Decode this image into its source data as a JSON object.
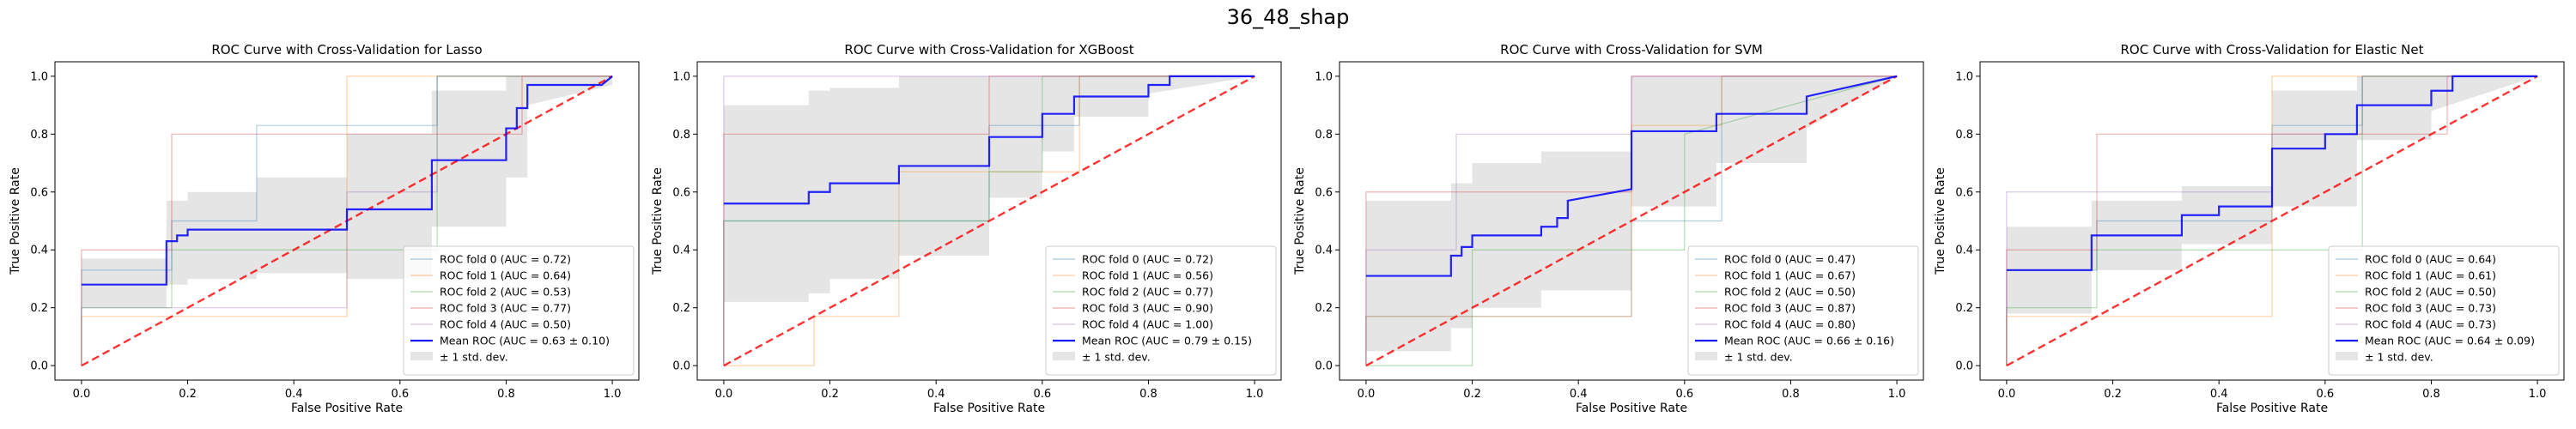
{
  "figure": {
    "title": "36_48_shap"
  },
  "chart_data": [
    {
      "type": "line",
      "title": "ROC Curve with Cross-Validation for Lasso",
      "xlabel": "False Positive Rate",
      "ylabel": "True Positive Rate",
      "xlim": [
        -0.05,
        1.05
      ],
      "ylim": [
        -0.05,
        1.05
      ],
      "xticks": [
        "0.0",
        "0.2",
        "0.4",
        "0.6",
        "0.8",
        "1.0"
      ],
      "yticks": [
        "0.0",
        "0.2",
        "0.4",
        "0.6",
        "0.8",
        "1.0"
      ],
      "legend_position": "lower right",
      "series": [
        {
          "name": "ROC fold 0 (AUC = 0.72)",
          "color": "#1f77b4",
          "x": [
            0,
            0,
            0.17,
            0.17,
            0.33,
            0.33,
            0.67,
            0.67,
            1,
            1
          ],
          "y": [
            0,
            0.33,
            0.33,
            0.5,
            0.5,
            0.83,
            0.83,
            1,
            1,
            1
          ]
        },
        {
          "name": "ROC fold 1 (AUC = 0.64)",
          "color": "#ff7f0e",
          "x": [
            0,
            0,
            0.5,
            0.5,
            0.8,
            0.8,
            1
          ],
          "y": [
            0,
            0.17,
            0.17,
            1,
            1,
            1,
            1
          ]
        },
        {
          "name": "ROC fold 2 (AUC = 0.53)",
          "color": "#2ca02c",
          "x": [
            0,
            0,
            0.17,
            0.17,
            0.67,
            0.67,
            1
          ],
          "y": [
            0,
            0.2,
            0.2,
            0.4,
            0.4,
            1,
            1
          ]
        },
        {
          "name": "ROC fold 3 (AUC = 0.77)",
          "color": "#d62728",
          "x": [
            0,
            0,
            0.17,
            0.17,
            0.83,
            0.83,
            1
          ],
          "y": [
            0,
            0.4,
            0.4,
            0.8,
            0.8,
            1,
            1
          ]
        },
        {
          "name": "ROC fold 4 (AUC = 0.50)",
          "color": "#9467bd",
          "x": [
            0,
            0,
            0.5,
            0.5,
            0.67,
            0.67,
            1
          ],
          "y": [
            0,
            0.2,
            0.2,
            0.6,
            0.6,
            1,
            1
          ]
        }
      ],
      "mean": {
        "name": "Mean ROC (AUC = 0.63 ± 0.10)",
        "color": "#0000ff",
        "x": [
          0,
          0.16,
          0.16,
          0.18,
          0.18,
          0.2,
          0.2,
          0.5,
          0.5,
          0.66,
          0.66,
          0.8,
          0.8,
          0.82,
          0.82,
          0.84,
          0.84,
          0.98,
          1
        ],
        "y": [
          0.28,
          0.28,
          0.43,
          0.43,
          0.45,
          0.45,
          0.47,
          0.47,
          0.54,
          0.54,
          0.71,
          0.71,
          0.82,
          0.82,
          0.89,
          0.89,
          0.97,
          0.97,
          1
        ]
      },
      "std_band": {
        "name": "± 1 std. dev.",
        "x": [
          0,
          0.16,
          0.16,
          0.2,
          0.2,
          0.33,
          0.33,
          0.5,
          0.5,
          0.66,
          0.66,
          0.8,
          0.8,
          0.84,
          0.84,
          1
        ],
        "upper": [
          0.37,
          0.37,
          0.57,
          0.57,
          0.6,
          0.6,
          0.65,
          0.65,
          0.8,
          0.8,
          0.95,
          0.95,
          1,
          1,
          1,
          1
        ],
        "lower": [
          0.2,
          0.2,
          0.28,
          0.28,
          0.3,
          0.3,
          0.32,
          0.32,
          0.3,
          0.3,
          0.48,
          0.48,
          0.65,
          0.65,
          0.9,
          0.97
        ]
      },
      "chance": {
        "color": "#ff0000",
        "x": [
          0,
          1
        ],
        "y": [
          0,
          1
        ]
      },
      "std_label": "± 1 std. dev."
    },
    {
      "type": "line",
      "title": "ROC Curve with Cross-Validation for XGBoost",
      "xlabel": "False Positive Rate",
      "ylabel": "True Positive Rate",
      "xlim": [
        -0.05,
        1.05
      ],
      "ylim": [
        -0.05,
        1.05
      ],
      "xticks": [
        "0.0",
        "0.2",
        "0.4",
        "0.6",
        "0.8",
        "1.0"
      ],
      "yticks": [
        "0.0",
        "0.2",
        "0.4",
        "0.6",
        "0.8",
        "1.0"
      ],
      "legend_position": "lower right",
      "series": [
        {
          "name": "ROC fold 0 (AUC = 0.72)",
          "color": "#1f77b4",
          "x": [
            0,
            0,
            0.5,
            0.5,
            0.67,
            0.67,
            1
          ],
          "y": [
            0,
            0.5,
            0.5,
            0.83,
            0.83,
            1,
            1
          ]
        },
        {
          "name": "ROC fold 1 (AUC = 0.56)",
          "color": "#ff7f0e",
          "x": [
            0,
            0,
            0.17,
            0.17,
            0.33,
            0.33,
            0.67,
            0.67,
            1
          ],
          "y": [
            0,
            0,
            0,
            0.17,
            0.17,
            0.67,
            0.67,
            1,
            1
          ]
        },
        {
          "name": "ROC fold 2 (AUC = 0.77)",
          "color": "#2ca02c",
          "x": [
            0,
            0,
            0.5,
            0.5,
            0.6,
            0.6,
            1
          ],
          "y": [
            0,
            0.5,
            0.5,
            0.67,
            0.67,
            1,
            1
          ]
        },
        {
          "name": "ROC fold 3 (AUC = 0.90)",
          "color": "#d62728",
          "x": [
            0,
            0,
            0.5,
            0.5,
            1
          ],
          "y": [
            0,
            0.8,
            0.8,
            1,
            1
          ]
        },
        {
          "name": "ROC fold 4 (AUC = 1.00)",
          "color": "#9467bd",
          "x": [
            0,
            0,
            1
          ],
          "y": [
            0,
            1,
            1
          ]
        }
      ],
      "mean": {
        "name": "Mean ROC (AUC = 0.79 ± 0.15)",
        "color": "#0000ff",
        "x": [
          0,
          0.16,
          0.16,
          0.2,
          0.2,
          0.33,
          0.33,
          0.5,
          0.5,
          0.6,
          0.6,
          0.66,
          0.66,
          0.8,
          0.8,
          0.84,
          0.84,
          1
        ],
        "y": [
          0.56,
          0.56,
          0.6,
          0.6,
          0.63,
          0.63,
          0.69,
          0.69,
          0.79,
          0.79,
          0.87,
          0.87,
          0.93,
          0.93,
          0.97,
          0.97,
          1,
          1
        ]
      },
      "std_band": {
        "name": "± 1 std. dev.",
        "x": [
          0,
          0.16,
          0.16,
          0.2,
          0.2,
          0.33,
          0.33,
          0.5,
          0.5,
          0.6,
          0.6,
          0.66,
          0.66,
          0.8,
          0.8,
          1
        ],
        "upper": [
          0.9,
          0.9,
          0.95,
          0.95,
          0.96,
          0.96,
          1,
          1,
          1,
          1,
          1,
          1,
          1,
          1,
          1,
          1
        ],
        "lower": [
          0.22,
          0.22,
          0.25,
          0.25,
          0.3,
          0.3,
          0.38,
          0.38,
          0.58,
          0.58,
          0.74,
          0.74,
          0.86,
          0.86,
          0.94,
          1
        ]
      },
      "chance": {
        "color": "#ff0000",
        "x": [
          0,
          1
        ],
        "y": [
          0,
          1
        ]
      },
      "std_label": "± 1 std. dev."
    },
    {
      "type": "line",
      "title": "ROC Curve with Cross-Validation for SVM",
      "xlabel": "False Positive Rate",
      "ylabel": "True Positive Rate",
      "xlim": [
        -0.05,
        1.05
      ],
      "ylim": [
        -0.05,
        1.05
      ],
      "xticks": [
        "0.0",
        "0.2",
        "0.4",
        "0.6",
        "0.8",
        "1.0"
      ],
      "yticks": [
        "0.0",
        "0.2",
        "0.4",
        "0.6",
        "0.8",
        "1.0"
      ],
      "legend_position": "lower right",
      "series": [
        {
          "name": "ROC fold 0 (AUC = 0.47)",
          "color": "#1f77b4",
          "x": [
            0,
            0,
            0.5,
            0.5,
            0.67,
            0.67,
            1
          ],
          "y": [
            0,
            0.17,
            0.17,
            0.5,
            0.5,
            1,
            1
          ]
        },
        {
          "name": "ROC fold 1 (AUC = 0.67)",
          "color": "#ff7f0e",
          "x": [
            0,
            0,
            0.5,
            0.5,
            0.67,
            0.67,
            1
          ],
          "y": [
            0,
            0.17,
            0.17,
            0.83,
            0.83,
            1,
            1
          ]
        },
        {
          "name": "ROC fold 2 (AUC = 0.50)",
          "color": "#2ca02c",
          "x": [
            0,
            0,
            0.2,
            0.2,
            0.6,
            0.6,
            1
          ],
          "y": [
            0,
            0,
            0,
            0.4,
            0.4,
            0.8,
            1
          ]
        },
        {
          "name": "ROC fold 3 (AUC = 0.87)",
          "color": "#d62728",
          "x": [
            0,
            0,
            0.5,
            0.5,
            1
          ],
          "y": [
            0,
            0.6,
            0.6,
            1,
            1
          ]
        },
        {
          "name": "ROC fold 4 (AUC = 0.80)",
          "color": "#9467bd",
          "x": [
            0,
            0,
            0.17,
            0.17,
            0.5,
            0.5,
            1
          ],
          "y": [
            0,
            0.4,
            0.4,
            0.8,
            0.8,
            1,
            1
          ]
        }
      ],
      "mean": {
        "name": "Mean ROC (AUC = 0.66 ± 0.16)",
        "color": "#0000ff",
        "x": [
          0,
          0.16,
          0.16,
          0.18,
          0.18,
          0.2,
          0.2,
          0.33,
          0.33,
          0.36,
          0.36,
          0.38,
          0.38,
          0.5,
          0.5,
          0.66,
          0.66,
          0.83,
          0.83,
          1
        ],
        "y": [
          0.31,
          0.31,
          0.38,
          0.38,
          0.41,
          0.41,
          0.45,
          0.45,
          0.48,
          0.48,
          0.51,
          0.51,
          0.57,
          0.61,
          0.81,
          0.81,
          0.87,
          0.87,
          0.93,
          1
        ]
      },
      "std_band": {
        "name": "± 1 std. dev.",
        "x": [
          0,
          0.16,
          0.16,
          0.2,
          0.2,
          0.33,
          0.33,
          0.5,
          0.5,
          0.66,
          0.66,
          0.83,
          0.83,
          1
        ],
        "upper": [
          0.57,
          0.57,
          0.63,
          0.63,
          0.7,
          0.7,
          0.74,
          0.74,
          1,
          1,
          1,
          1,
          1,
          1
        ],
        "lower": [
          0.05,
          0.05,
          0.13,
          0.13,
          0.2,
          0.2,
          0.26,
          0.26,
          0.55,
          0.55,
          0.7,
          0.7,
          0.82,
          1
        ]
      },
      "chance": {
        "color": "#ff0000",
        "x": [
          0,
          1
        ],
        "y": [
          0,
          1
        ]
      },
      "std_label": "± 1 std. dev."
    },
    {
      "type": "line",
      "title": "ROC Curve with Cross-Validation for Elastic Net",
      "xlabel": "False Positive Rate",
      "ylabel": "True Positive Rate",
      "xlim": [
        -0.05,
        1.05
      ],
      "ylim": [
        -0.05,
        1.05
      ],
      "xticks": [
        "0.0",
        "0.2",
        "0.4",
        "0.6",
        "0.8",
        "1.0"
      ],
      "yticks": [
        "0.0",
        "0.2",
        "0.4",
        "0.6",
        "0.8",
        "1.0"
      ],
      "legend_position": "lower right",
      "series": [
        {
          "name": "ROC fold 0 (AUC = 0.64)",
          "color": "#1f77b4",
          "x": [
            0,
            0,
            0.17,
            0.17,
            0.5,
            0.5,
            0.67,
            0.67,
            1
          ],
          "y": [
            0,
            0.33,
            0.33,
            0.5,
            0.5,
            0.83,
            0.83,
            1,
            1
          ]
        },
        {
          "name": "ROC fold 1 (AUC = 0.61)",
          "color": "#ff7f0e",
          "x": [
            0,
            0,
            0.5,
            0.5,
            0.8,
            0.8,
            1
          ],
          "y": [
            0,
            0.17,
            0.17,
            1,
            1,
            1,
            1
          ]
        },
        {
          "name": "ROC fold 2 (AUC = 0.50)",
          "color": "#2ca02c",
          "x": [
            0,
            0,
            0.17,
            0.17,
            0.67,
            0.67,
            1
          ],
          "y": [
            0,
            0.2,
            0.2,
            0.4,
            0.4,
            1,
            1
          ]
        },
        {
          "name": "ROC fold 3 (AUC = 0.73)",
          "color": "#d62728",
          "x": [
            0,
            0,
            0.17,
            0.17,
            0.83,
            0.83,
            1
          ],
          "y": [
            0,
            0.4,
            0.4,
            0.8,
            0.8,
            1,
            1
          ]
        },
        {
          "name": "ROC fold 4 (AUC = 0.73)",
          "color": "#9467bd",
          "x": [
            0,
            0,
            0.5,
            0.5,
            0.67,
            0.67,
            1
          ],
          "y": [
            0,
            0.6,
            0.6,
            0.8,
            0.8,
            1,
            1
          ]
        }
      ],
      "mean": {
        "name": "Mean ROC (AUC = 0.64 ± 0.09)",
        "color": "#0000ff",
        "x": [
          0,
          0.16,
          0.16,
          0.33,
          0.33,
          0.4,
          0.4,
          0.5,
          0.5,
          0.6,
          0.6,
          0.66,
          0.66,
          0.8,
          0.8,
          0.84,
          0.84,
          1
        ],
        "y": [
          0.33,
          0.33,
          0.45,
          0.45,
          0.52,
          0.52,
          0.55,
          0.55,
          0.75,
          0.75,
          0.8,
          0.8,
          0.9,
          0.9,
          0.95,
          0.95,
          1,
          1
        ]
      },
      "std_band": {
        "name": "± 1 std. dev.",
        "x": [
          0,
          0.16,
          0.16,
          0.33,
          0.33,
          0.5,
          0.5,
          0.66,
          0.66,
          0.8,
          0.8,
          1
        ],
        "upper": [
          0.48,
          0.48,
          0.57,
          0.57,
          0.62,
          0.62,
          0.95,
          0.95,
          1,
          1,
          1,
          1
        ],
        "lower": [
          0.18,
          0.18,
          0.33,
          0.33,
          0.42,
          0.42,
          0.55,
          0.55,
          0.78,
          0.78,
          0.88,
          1
        ]
      },
      "chance": {
        "color": "#ff0000",
        "x": [
          0,
          1
        ],
        "y": [
          0,
          1
        ]
      },
      "std_label": "± 1 std. dev."
    }
  ]
}
